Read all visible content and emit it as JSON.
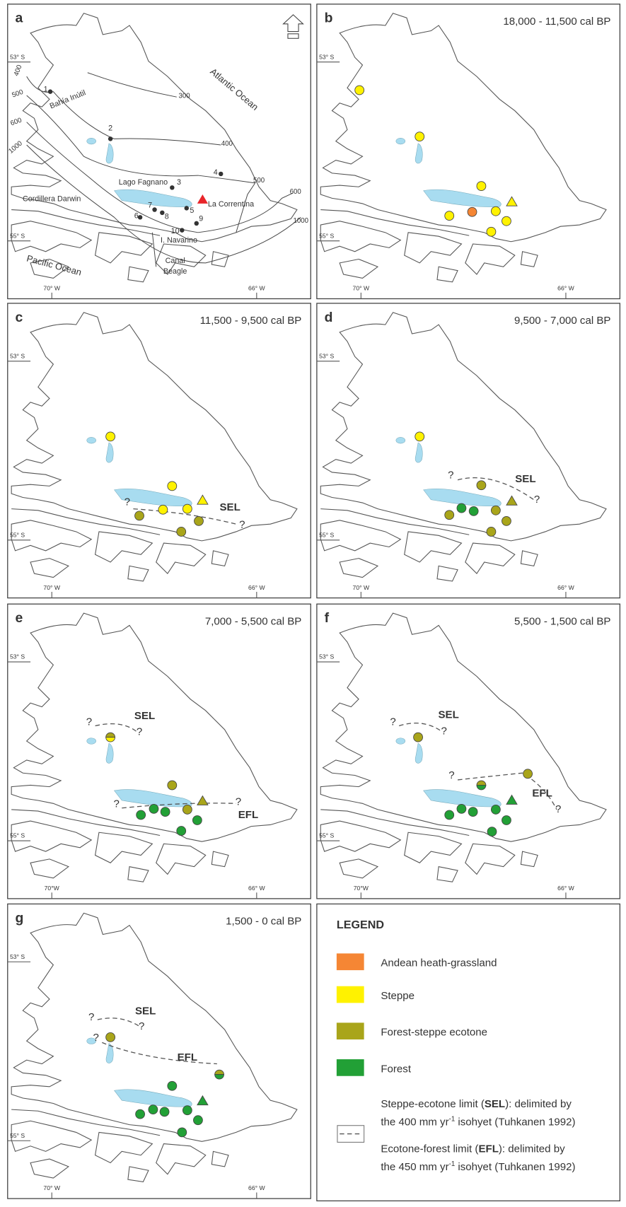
{
  "panels": [
    {
      "letter": "a",
      "lat_labels": [
        "53° S",
        "55° S"
      ],
      "lon_labels": [
        "70° W",
        "66° W"
      ],
      "labels": [
        "Atlantic Ocean",
        "Pacific Ocean",
        "Bahía Inútil",
        "Lago Fagnano",
        "Cordillera Darwin",
        "La Correntina",
        "I. Navarino",
        "Canal",
        "Beagle",
        "400",
        "500",
        "600",
        "1000",
        "300",
        "400",
        "500",
        "600",
        "1000",
        "1",
        "2",
        "3",
        "4",
        "5",
        "6",
        "7",
        "8",
        "9",
        "10"
      ]
    },
    {
      "letter": "b",
      "period": "18,000 - 11,500 cal BP",
      "lat_labels": [
        "53° S",
        "55° S"
      ],
      "lon_labels": [
        "70° W",
        "66° W"
      ]
    },
    {
      "letter": "c",
      "period": "11,500 - 9,500 cal BP",
      "lat_labels": [
        "53° S",
        "55° S"
      ],
      "lon_labels": [
        "70° W",
        "66° W"
      ],
      "annotations": [
        "?",
        "SEL",
        "?"
      ]
    },
    {
      "letter": "d",
      "period": "9,500 - 7,000 cal BP",
      "lat_labels": [
        "53° S",
        "55° S"
      ],
      "lon_labels": [
        "70° W",
        "66° W"
      ],
      "annotations": [
        "?",
        "SEL",
        "?"
      ]
    },
    {
      "letter": "e",
      "period": "7,000 - 5,500 cal BP",
      "lat_labels": [
        "53° S",
        "55° S"
      ],
      "lon_labels": [
        "70°W",
        "66° W"
      ],
      "annotations": [
        "?",
        "SEL",
        "?",
        "?",
        "?",
        "EFL"
      ]
    },
    {
      "letter": "f",
      "period": "5,500 - 1,500 cal BP",
      "lat_labels": [
        "53° S",
        "55° S"
      ],
      "lon_labels": [
        "70°W",
        "66° W"
      ],
      "annotations": [
        "?",
        "SEL",
        "?",
        "?",
        "EFL",
        "?"
      ]
    },
    {
      "letter": "g",
      "period": "1,500 - 0 cal BP",
      "lat_labels": [
        "53° S",
        "55° S"
      ],
      "lon_labels": [
        "70° W",
        "66° W"
      ],
      "annotations": [
        "?",
        "SEL",
        "?",
        "?",
        "EFL"
      ]
    }
  ],
  "legend": {
    "title": "LEGEND",
    "items": [
      {
        "label": "Andean heath-grassland",
        "color": "#f58634"
      },
      {
        "label": "Steppe",
        "color": "#fff200"
      },
      {
        "label": "Forest-steppe ecotone",
        "color": "#a9a51a"
      },
      {
        "label": "Forest",
        "color": "#22a036"
      }
    ],
    "sel": [
      "Steppe-ecotone limit (",
      "SEL",
      "): delimited by",
      "the 400 mm yr",
      "-1",
      " isohyet (Tuhkanen 1992)"
    ],
    "efl": [
      "Ecotone-forest limit (",
      "EFL",
      "): delimited by",
      "the 450 mm yr",
      "-1",
      " isohyet (Tuhkanen 1992)"
    ]
  }
}
